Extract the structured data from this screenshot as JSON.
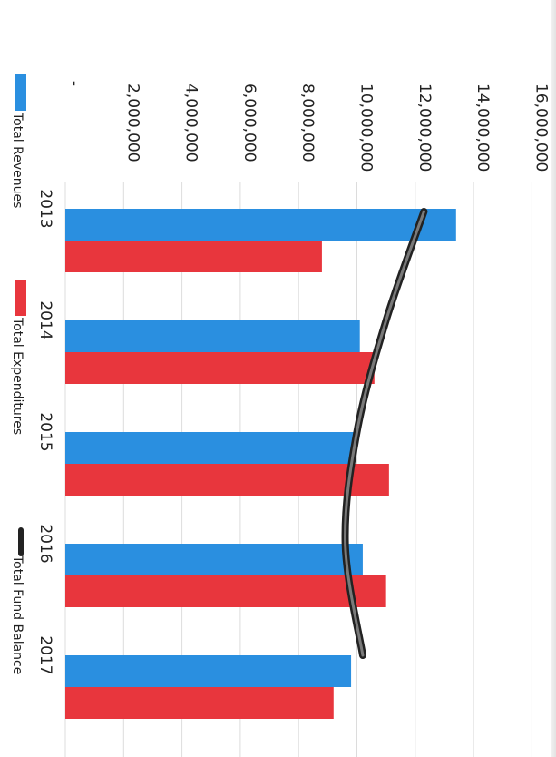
{
  "chart_data": {
    "type": "bar",
    "orientation": "rotated-90-clockwise",
    "categories": [
      "2013",
      "2014",
      "2015",
      "2016",
      "2017"
    ],
    "series": [
      {
        "name": "Total Revenues",
        "kind": "bar",
        "color": "#2a8fe0",
        "values": [
          13400000,
          10100000,
          9900000,
          10200000,
          9800000
        ]
      },
      {
        "name": "Total Expenditures",
        "kind": "bar",
        "color": "#e8363d",
        "values": [
          8800000,
          10600000,
          11100000,
          11000000,
          9200000
        ]
      },
      {
        "name": "Total Fund Balance",
        "kind": "line",
        "color": "#333333",
        "values": [
          12300000,
          11000000,
          10000000,
          9600000,
          10200000
        ]
      }
    ],
    "value_ticks": [
      "-",
      "2,000,000",
      "4,000,000",
      "6,000,000",
      "8,000,000",
      "10,000,000",
      "12,000,000",
      "14,000,000",
      "16,000,000"
    ],
    "ylim": [
      0,
      16000000
    ],
    "grid": true,
    "legend_position": "bottom"
  }
}
